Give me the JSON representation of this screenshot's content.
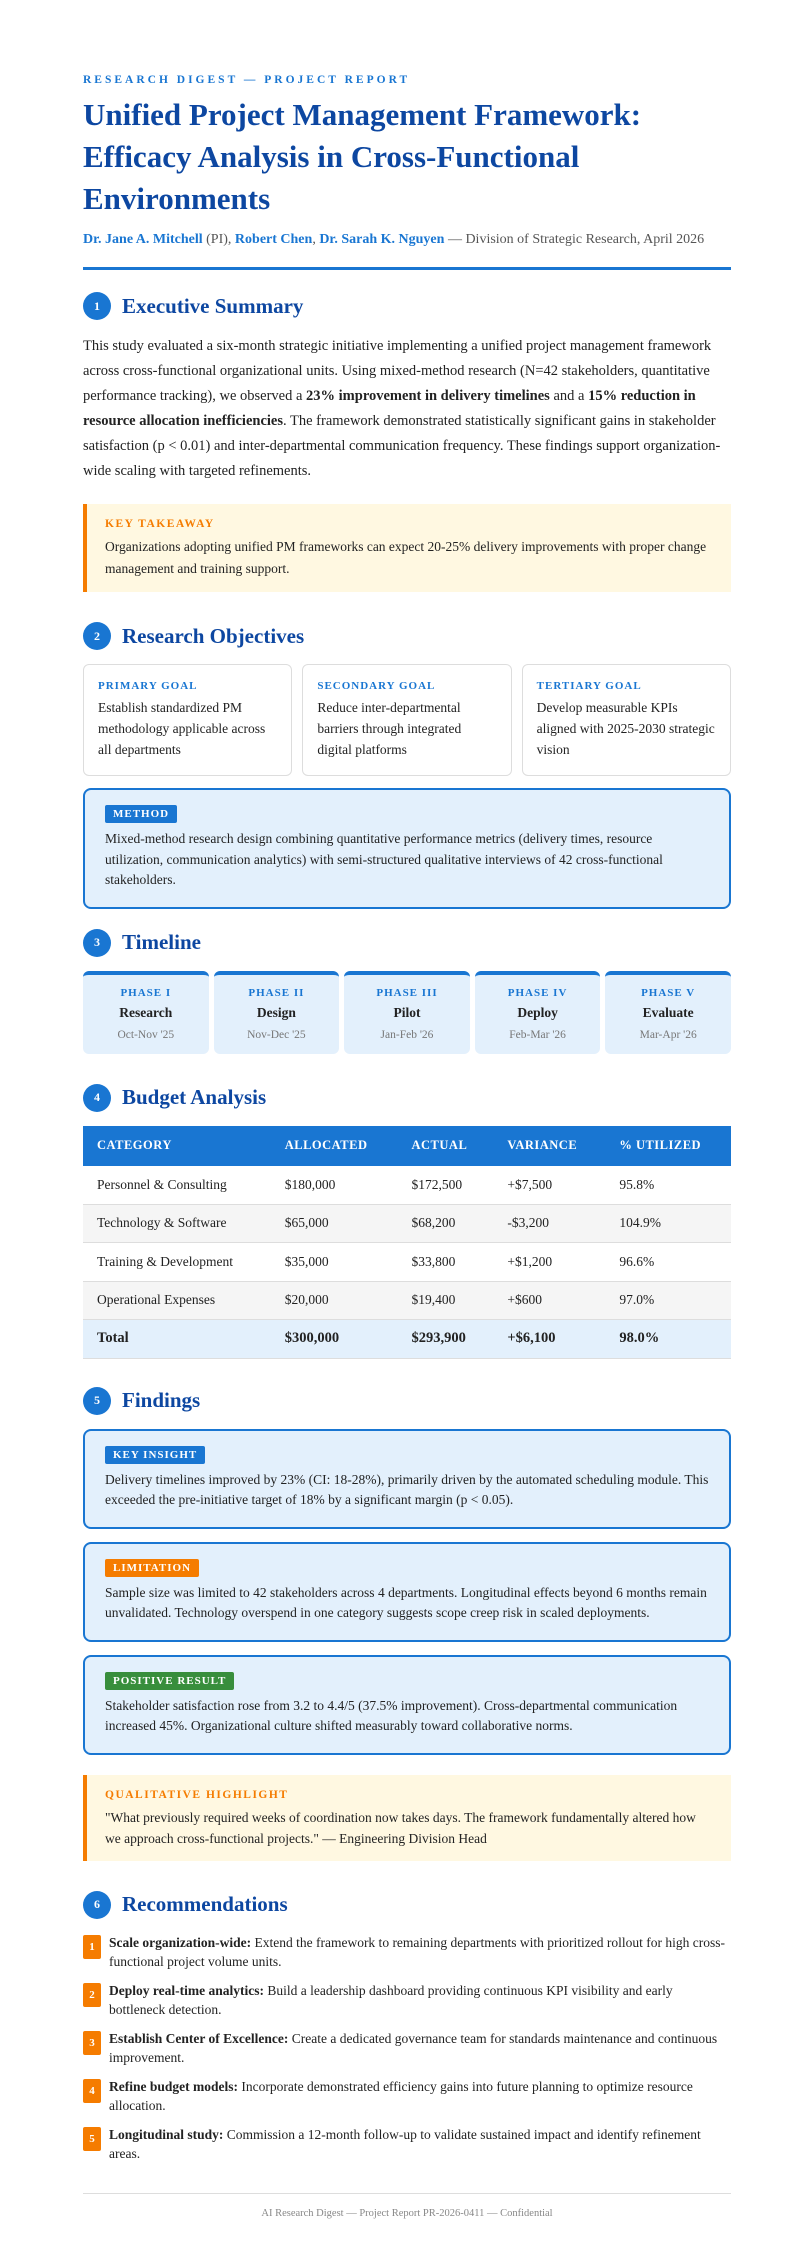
{
  "header": {
    "eyebrow": "RESEARCH DIGEST — PROJECT REPORT",
    "title": "Unified Project Management Framework: Efficacy Analysis in Cross-Functional Environments",
    "authors": [
      {
        "name": "Dr. Jane A. Mitchell",
        "suffix": " (PI), "
      },
      {
        "name": "Robert Chen",
        "suffix": ", "
      },
      {
        "name": "Dr. Sarah K. Nguyen",
        "suffix": " — Division of Strategic Research, April 2026"
      }
    ]
  },
  "sections": {
    "s1": {
      "num": "1",
      "title": "Executive Summary",
      "p1": "This study evaluated a six-month strategic initiative implementing a unified project management framework across cross-functional organizational units. Using mixed-method research (N=42 stakeholders, quantitative performance tracking), we observed a ",
      "b1": "23% improvement in delivery timelines",
      "p2": " and a ",
      "b2": "15% reduction in resource allocation inefficiencies",
      "p3": ". The framework demonstrated statistically significant gains in stakeholder satisfaction (p < 0.01) and inter-departmental communication frequency. These findings support organization-wide scaling with targeted refinements.",
      "takeaway_label": "KEY TAKEAWAY",
      "takeaway": "Organizations adopting unified PM frameworks can expect 20-25% delivery improvements with proper change management and training support."
    },
    "s2": {
      "num": "2",
      "title": "Research Objectives",
      "goals": [
        {
          "label": "PRIMARY GOAL",
          "text": "Establish standardized PM methodology applicable across all departments"
        },
        {
          "label": "SECONDARY GOAL",
          "text": "Reduce inter-departmental barriers through integrated digital platforms"
        },
        {
          "label": "TERTIARY GOAL",
          "text": "Develop measurable KPIs aligned with 2025-2030 strategic vision"
        }
      ],
      "method_label": "METHOD",
      "method": "Mixed-method research design combining quantitative performance metrics (delivery times, resource utilization, communication analytics) with semi-structured qualitative interviews of 42 cross-functional stakeholders."
    },
    "s3": {
      "num": "3",
      "title": "Timeline",
      "phases": [
        {
          "label": "PHASE I",
          "name": "Research",
          "dates": "Oct-Nov '25"
        },
        {
          "label": "PHASE II",
          "name": "Design",
          "dates": "Nov-Dec '25"
        },
        {
          "label": "PHASE III",
          "name": "Pilot",
          "dates": "Jan-Feb '26"
        },
        {
          "label": "PHASE IV",
          "name": "Deploy",
          "dates": "Feb-Mar '26"
        },
        {
          "label": "PHASE V",
          "name": "Evaluate",
          "dates": "Mar-Apr '26"
        }
      ]
    },
    "s4": {
      "num": "4",
      "title": "Budget Analysis",
      "columns": [
        "CATEGORY",
        "ALLOCATED",
        "ACTUAL",
        "VARIANCE",
        "% UTILIZED"
      ],
      "rows": [
        [
          "Personnel & Consulting",
          "$180,000",
          "$172,500",
          "+$7,500",
          "95.8%"
        ],
        [
          "Technology & Software",
          "$65,000",
          "$68,200",
          "-$3,200",
          "104.9%"
        ],
        [
          "Training & Development",
          "$35,000",
          "$33,800",
          "+$1,200",
          "96.6%"
        ],
        [
          "Operational Expenses",
          "$20,000",
          "$19,400",
          "+$600",
          "97.0%"
        ]
      ],
      "total": [
        "Total",
        "$300,000",
        "$293,900",
        "+$6,100",
        "98.0%"
      ]
    },
    "s5": {
      "num": "5",
      "title": "Findings",
      "cards": [
        {
          "label": "KEY INSIGHT",
          "color": "#1976d2",
          "text": "Delivery timelines improved by 23% (CI: 18-28%), primarily driven by the automated scheduling module. This exceeded the pre-initiative target of 18% by a significant margin (p < 0.05)."
        },
        {
          "label": "LIMITATION",
          "color": "#f57c00",
          "text": "Sample size was limited to 42 stakeholders across 4 departments. Longitudinal effects beyond 6 months remain unvalidated. Technology overspend in one category suggests scope creep risk in scaled deployments."
        },
        {
          "label": "POSITIVE RESULT",
          "color": "#388e3c",
          "text": "Stakeholder satisfaction rose from 3.2 to 4.4/5 (37.5% improvement). Cross-departmental communication increased 45%. Organizational culture shifted measurably toward collaborative norms."
        }
      ],
      "qual_label": "QUALITATIVE HIGHLIGHT",
      "qual": "\"What previously required weeks of coordination now takes days. The framework fundamentally altered how we approach cross-functional projects.\" — Engineering Division Head"
    },
    "s6": {
      "num": "6",
      "title": "Recommendations",
      "items": [
        {
          "n": "1",
          "bold": "Scale organization-wide:",
          "text": " Extend the framework to remaining departments with prioritized rollout for high cross-functional project volume units."
        },
        {
          "n": "2",
          "bold": "Deploy real-time analytics:",
          "text": " Build a leadership dashboard providing continuous KPI visibility and early bottleneck detection."
        },
        {
          "n": "3",
          "bold": "Establish Center of Excellence:",
          "text": " Create a dedicated governance team for standards maintenance and continuous improvement."
        },
        {
          "n": "4",
          "bold": "Refine budget models:",
          "text": " Incorporate demonstrated efficiency gains into future planning to optimize resource allocation."
        },
        {
          "n": "5",
          "bold": "Longitudinal study:",
          "text": " Commission a 12-month follow-up to validate sustained impact and identify refinement areas."
        }
      ]
    }
  },
  "footer": "AI Research Digest — Project Report PR-2026-0411 — Confidential",
  "colors": {
    "primary": "#1976d2",
    "heading": "#0d47a1",
    "accent": "#f57c00",
    "success": "#388e3c"
  }
}
